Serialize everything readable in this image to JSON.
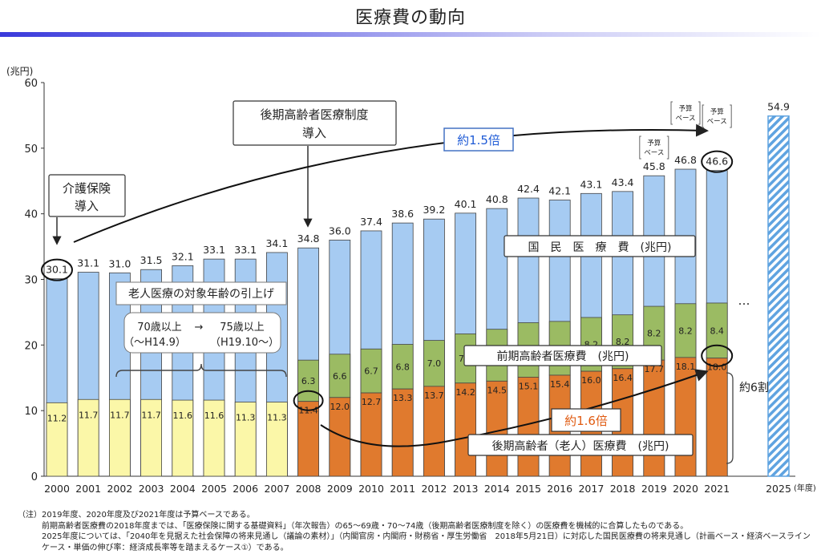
{
  "title": "医療費の動向",
  "chart_data": {
    "type": "bar",
    "y_unit": "(兆円)",
    "x_unit": "(年度)",
    "ylim": [
      0,
      60
    ],
    "yticks": [
      0,
      10,
      20,
      30,
      40,
      50,
      60
    ],
    "categories": [
      "2000",
      "2001",
      "2002",
      "2003",
      "2004",
      "2005",
      "2006",
      "2007",
      "2008",
      "2009",
      "2010",
      "2011",
      "2012",
      "2013",
      "2014",
      "2015",
      "2016",
      "2017",
      "2018",
      "2019",
      "2020",
      "2021",
      "2025"
    ],
    "totals": [
      "30.1",
      "31.1",
      "31.0",
      "31.5",
      "32.1",
      "33.1",
      "33.1",
      "34.1",
      "34.8",
      "36.0",
      "37.4",
      "38.6",
      "39.2",
      "40.1",
      "40.8",
      "42.4",
      "42.1",
      "43.1",
      "43.4",
      "45.8",
      "46.8",
      "46.6",
      "54.9"
    ],
    "series": [
      {
        "name": "後期高齢者（老人）医療費　(兆円)",
        "color": "#e07a2e",
        "values": [
          null,
          null,
          null,
          null,
          null,
          null,
          null,
          null,
          11.4,
          12.0,
          12.7,
          13.3,
          13.7,
          14.2,
          14.5,
          15.1,
          15.4,
          16.0,
          16.4,
          17.7,
          18.1,
          18.0,
          null
        ],
        "labels": [
          "",
          "",
          "",
          "",
          "",
          "",
          "",
          "",
          "11.4",
          "12.0",
          "12.7",
          "13.3",
          "13.7",
          "14.2",
          "14.5",
          "15.1",
          "15.4",
          "16.0",
          "16.4",
          "17.7",
          "18.1",
          "18.0",
          ""
        ]
      },
      {
        "name": "老人医療費",
        "color": "#fbf7a8",
        "values": [
          11.2,
          11.7,
          11.7,
          11.7,
          11.6,
          11.6,
          11.3,
          11.3,
          null,
          null,
          null,
          null,
          null,
          null,
          null,
          null,
          null,
          null,
          null,
          null,
          null,
          null,
          null
        ],
        "labels": [
          "11.2",
          "11.7",
          "11.7",
          "11.7",
          "11.6",
          "11.6",
          "11.3",
          "11.3",
          "",
          "",
          "",
          "",
          "",
          "",
          "",
          "",
          "",
          "",
          "",
          "",
          "",
          "",
          ""
        ]
      },
      {
        "name": "前期高齢者医療費　(兆円)",
        "color": "#9bbb63",
        "values": [
          null,
          null,
          null,
          null,
          null,
          null,
          null,
          null,
          6.3,
          6.6,
          6.7,
          6.8,
          7.0,
          7.5,
          7.9,
          8.3,
          8.2,
          8.2,
          8.2,
          8.2,
          8.2,
          8.4,
          null
        ],
        "labels": [
          "",
          "",
          "",
          "",
          "",
          "",
          "",
          "",
          "6.3",
          "6.6",
          "6.7",
          "6.8",
          "7.0",
          "7.5",
          "7.9",
          "8.3",
          "8.2",
          "8.2",
          "8.2",
          "8.2",
          "8.2",
          "8.4",
          ""
        ]
      },
      {
        "name": "国　民　医　療　費　(兆円)",
        "color": "#a6cbf2",
        "values": [
          30.1,
          31.1,
          31.0,
          31.5,
          32.1,
          33.1,
          33.1,
          34.1,
          34.8,
          36.0,
          37.4,
          38.6,
          39.2,
          40.1,
          40.8,
          42.4,
          42.1,
          43.1,
          43.4,
          45.8,
          46.8,
          46.6,
          54.9
        ]
      }
    ],
    "annotations": {
      "kaigo": [
        "介護保険",
        "導入"
      ],
      "kouki": [
        "後期高齢者医療制度",
        "導入"
      ],
      "ratio_total": "約1.5倍",
      "ratio_kouki": "約1.6倍",
      "six_tenths": "約6割",
      "rounen_title": "老人医療の対象年齢の引上げ",
      "age_from": "70歳以上",
      "age_arrow": "→",
      "age_to": "75歳以上",
      "period_from": "（～H14.9）",
      "period_to": "（H19.10～）",
      "budget": [
        "予算",
        "ベース"
      ],
      "ellipsis": "…"
    }
  },
  "notes": {
    "label": "（注）",
    "lines": [
      "2019年度、2020年度及び2021年度は予算ベースである。",
      "前期高齢者医療費の2018年度までは、「医療保険に関する基礎資料」（年次報告）の65～69歳・70～74歳（後期高齢者医療制度を除く）の医療費を機械的に合算したものである。",
      "2025年度については、「2040年を見据えた社会保障の将来見通し（議論の素材）」（内閣官房・内閣府・財務省・厚生労働省　2018年5月21日）に対応した国民医療費の将来見通し（計画ベース・経済ベースライン",
      "ケース・単価の伸び率：経済成長率等を踏まえるケース①）である。"
    ]
  }
}
